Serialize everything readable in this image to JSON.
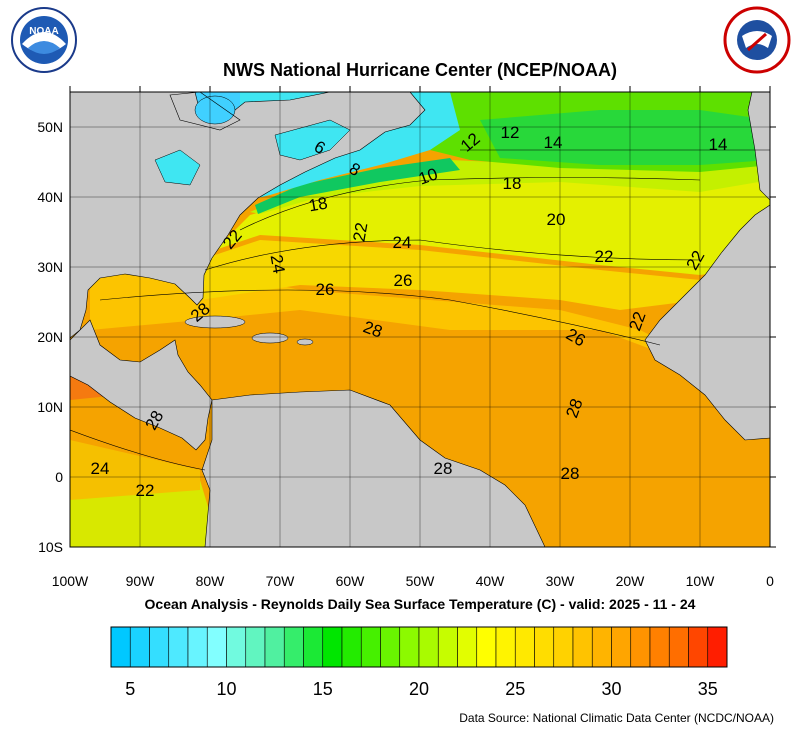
{
  "header": {
    "title": "NWS National Hurricane Center (NCEP/NOAA)",
    "logo_left": "NOAA"
  },
  "map": {
    "lat_labels": [
      "50N",
      "40N",
      "30N",
      "20N",
      "10N",
      "0",
      "10S"
    ],
    "lon_labels": [
      "100W",
      "90W",
      "80W",
      "70W",
      "60W",
      "50W",
      "40W",
      "30W",
      "20W",
      "10W",
      "0"
    ],
    "contour_labels": [
      "12",
      "14",
      "14",
      "6",
      "8",
      "10",
      "12",
      "18",
      "18",
      "20",
      "22",
      "24",
      "22",
      "24",
      "26",
      "26",
      "22",
      "28",
      "26",
      "22",
      "28",
      "28",
      "24",
      "22",
      "28",
      "28",
      "22",
      "28"
    ]
  },
  "caption": "Ocean Analysis - Reynolds Daily Sea Surface Temperature (C) - valid: 2025 - 11 - 24",
  "colorbar": {
    "range": [
      4,
      36
    ],
    "ticks": [
      5,
      10,
      15,
      20,
      25,
      30,
      35
    ]
  },
  "source": "Data Source: National Climatic Data Center (NCDC/NOAA)"
}
